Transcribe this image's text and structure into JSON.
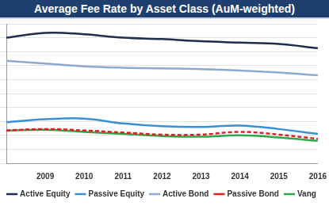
{
  "chart_data": {
    "type": "line",
    "title": "Average Fee Rate by Asset Class (AuM-weighted)",
    "categories": [
      null,
      "2009",
      "2010",
      "2011",
      "2012",
      "2013",
      "2014",
      "2015",
      "2016"
    ],
    "series": [
      {
        "name": "Active Equity",
        "color": "#1f2d4e",
        "line_style": "solid",
        "values": [
          0.9,
          0.935,
          0.925,
          0.9,
          0.89,
          0.875,
          0.865,
          0.855,
          0.825
        ]
      },
      {
        "name": "Passive Equity",
        "color": "#3a8fd9",
        "line_style": "solid",
        "values": [
          0.295,
          0.315,
          0.32,
          0.285,
          0.265,
          0.26,
          0.27,
          0.245,
          0.21
        ]
      },
      {
        "name": "Active Bond",
        "color": "#8ea9cf",
        "line_style": "solid",
        "values": [
          0.735,
          0.715,
          0.695,
          0.685,
          0.68,
          0.675,
          0.665,
          0.65,
          0.63
        ]
      },
      {
        "name": "Passive Bond",
        "color": "#e02020",
        "line_style": "dashed",
        "values": [
          0.235,
          0.245,
          0.235,
          0.22,
          0.205,
          0.205,
          0.225,
          0.205,
          0.175
        ]
      },
      {
        "name": "Vang",
        "color": "#2aa84a",
        "line_style": "solid",
        "values": [
          0.235,
          0.24,
          0.225,
          0.21,
          0.195,
          0.19,
          0.2,
          0.185,
          0.16
        ]
      }
    ],
    "ylim": [
      0,
      1
    ],
    "yticks": [
      0,
      0.1,
      0.2,
      0.3,
      0.4,
      0.5,
      0.6,
      0.7,
      0.8,
      0.9,
      1
    ],
    "grid": true,
    "legend": "bottom",
    "tick_labels": "x"
  }
}
